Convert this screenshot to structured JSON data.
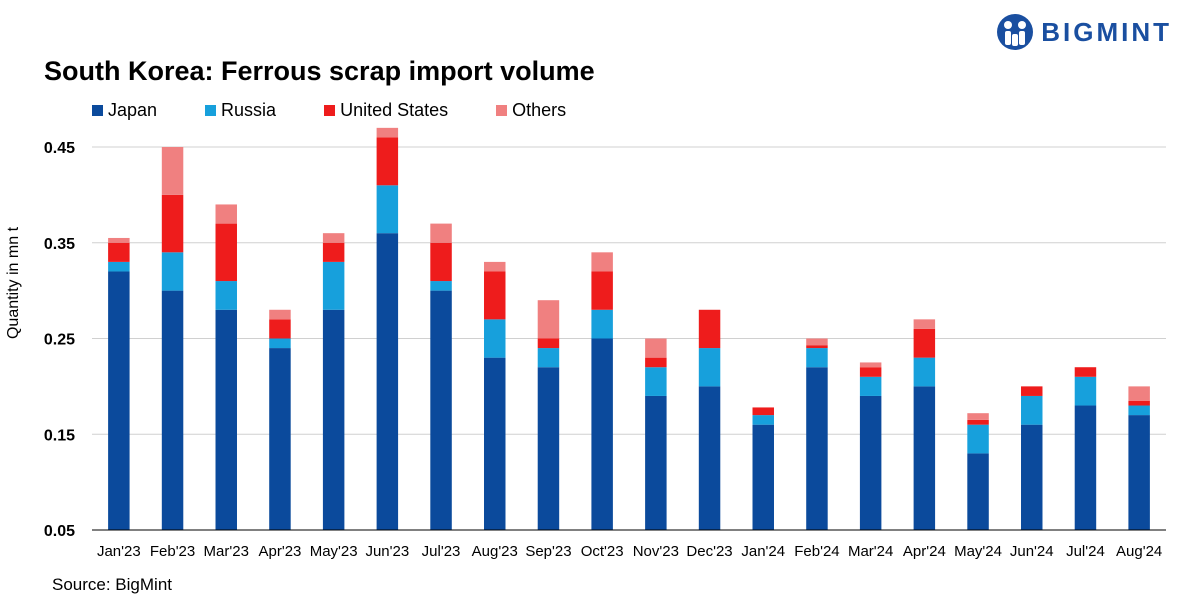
{
  "brand": {
    "name": "BIGMINT",
    "color": "#1a4fa0"
  },
  "source": "Source: BigMint",
  "chart_data": {
    "type": "bar",
    "stacked": true,
    "title": "South Korea: Ferrous scrap import volume",
    "xlabel": "",
    "ylabel": "Quantity in mn t",
    "ylim": [
      0.05,
      0.45
    ],
    "yticks": [
      0.05,
      0.15,
      0.25,
      0.35,
      0.45
    ],
    "ytick_labels": [
      "0.05",
      "0.15",
      "0.25",
      "0.35",
      "0.45"
    ],
    "grid": true,
    "legend_position": "top-left",
    "categories": [
      "Jan'23",
      "Feb'23",
      "Mar'23",
      "Apr'23",
      "May'23",
      "Jun'23",
      "Jul'23",
      "Aug'23",
      "Sep'23",
      "Oct'23",
      "Nov'23",
      "Dec'23",
      "Jan'24",
      "Feb'24",
      "Mar'24",
      "Apr'24",
      "May'24",
      "Jun'24",
      "Jul'24",
      "Aug'24"
    ],
    "series": [
      {
        "name": "Japan",
        "color": "#0b4a9c",
        "values": [
          0.27,
          0.25,
          0.23,
          0.19,
          0.23,
          0.31,
          0.25,
          0.18,
          0.17,
          0.2,
          0.14,
          0.15,
          0.11,
          0.17,
          0.14,
          0.15,
          0.08,
          0.11,
          0.13,
          0.12
        ]
      },
      {
        "name": "Russia",
        "color": "#17a0dc",
        "values": [
          0.01,
          0.04,
          0.03,
          0.01,
          0.05,
          0.05,
          0.01,
          0.04,
          0.02,
          0.03,
          0.03,
          0.04,
          0.01,
          0.02,
          0.02,
          0.03,
          0.03,
          0.03,
          0.03,
          0.01
        ]
      },
      {
        "name": "United States",
        "color": "#ee1c1c",
        "values": [
          0.02,
          0.06,
          0.06,
          0.02,
          0.02,
          0.05,
          0.04,
          0.05,
          0.01,
          0.04,
          0.01,
          0.04,
          0.008,
          0.003,
          0.01,
          0.03,
          0.005,
          0.01,
          0.01,
          0.005
        ]
      },
      {
        "name": "Others",
        "color": "#f08080",
        "values": [
          0.005,
          0.05,
          0.02,
          0.01,
          0.01,
          0.01,
          0.02,
          0.01,
          0.04,
          0.02,
          0.02,
          0.0,
          0.0,
          0.007,
          0.005,
          0.01,
          0.007,
          0.0,
          0.0,
          0.015
        ]
      }
    ]
  }
}
